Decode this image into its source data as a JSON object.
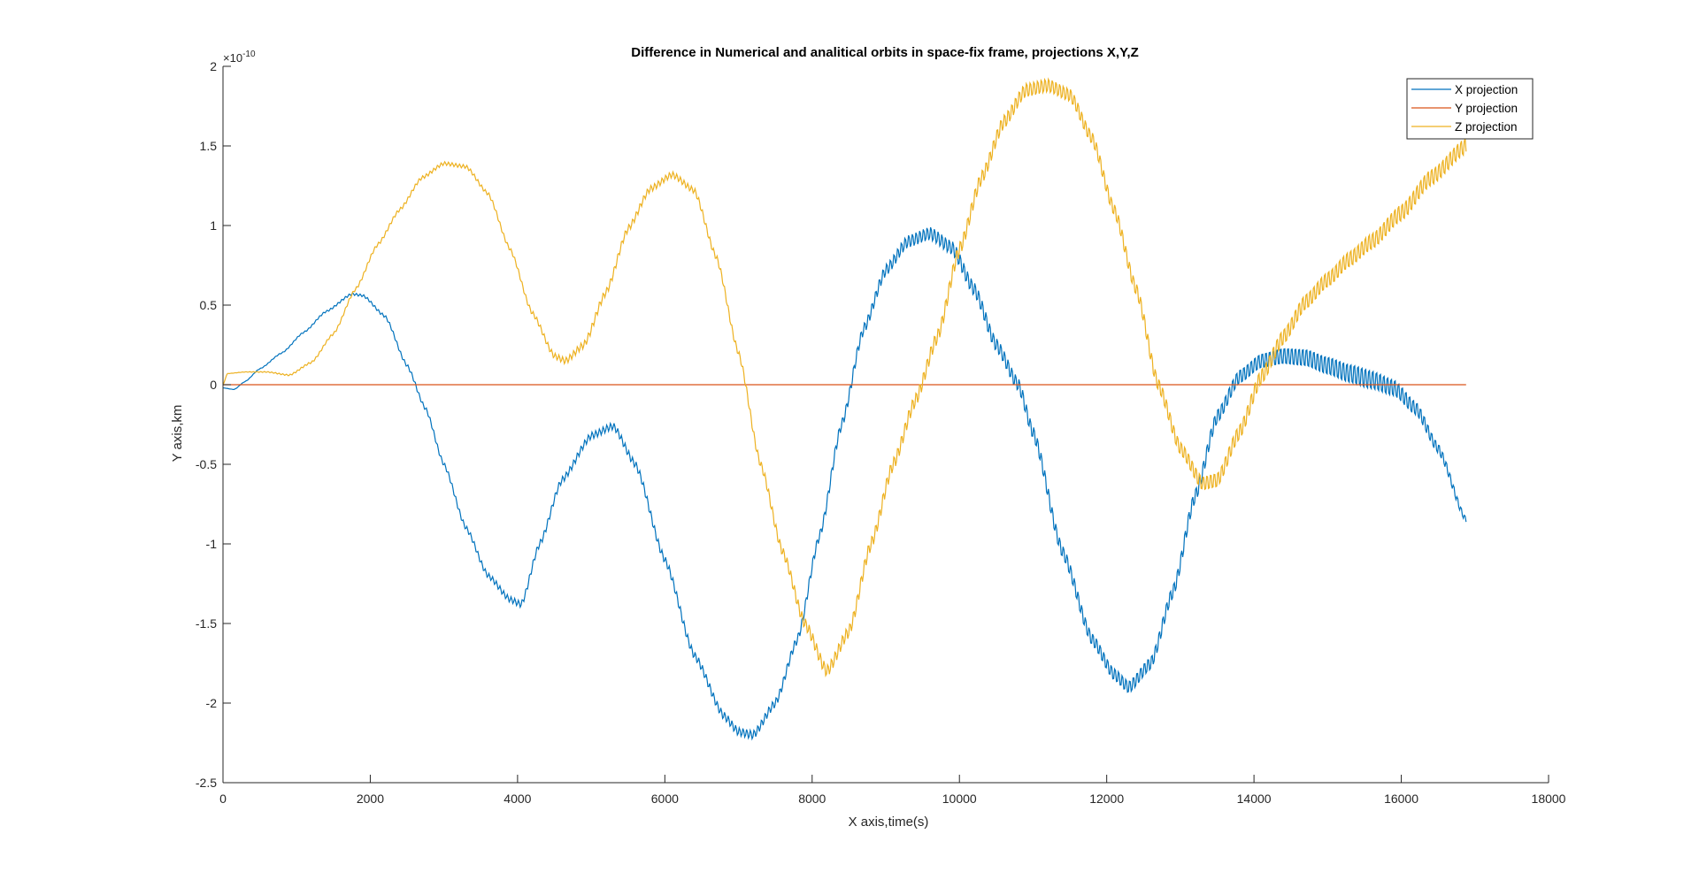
{
  "chart_data": {
    "type": "line",
    "title": "Difference in Numerical and analitical orbits in space-fix frame, projections X,Y,Z",
    "xlabel": "X axis,time(s)",
    "ylabel": "Y axis,km",
    "y_exponent_label": "×10",
    "y_exponent_power": "-10",
    "xlim": [
      0,
      18000
    ],
    "ylim": [
      -2.5,
      2
    ],
    "x_ticks": [
      0,
      2000,
      4000,
      6000,
      8000,
      10000,
      12000,
      14000,
      16000,
      18000
    ],
    "x_tick_labels": [
      "0",
      "2000",
      "4000",
      "6000",
      "8000",
      "10000",
      "12000",
      "14000",
      "16000",
      "18000"
    ],
    "y_ticks": [
      -2.5,
      -2,
      -1.5,
      -1,
      -0.5,
      0,
      0.5,
      1,
      1.5,
      2
    ],
    "y_tick_labels": [
      "-2.5",
      "-2",
      "-1.5",
      "-1",
      "-0.5",
      "0",
      "0.5",
      "1",
      "1.5",
      "2"
    ],
    "grid": false,
    "legend_position": "top-right",
    "series": [
      {
        "name": "X projection",
        "color": "#0072BD",
        "points": [
          [
            0,
            -0.02
          ],
          [
            150,
            -0.03
          ],
          [
            300,
            0.02
          ],
          [
            500,
            0.1
          ],
          [
            800,
            0.2
          ],
          [
            1100,
            0.33
          ],
          [
            1400,
            0.46
          ],
          [
            1750,
            0.57
          ],
          [
            1900,
            0.56
          ],
          [
            2200,
            0.43
          ],
          [
            2500,
            0.12
          ],
          [
            2750,
            -0.15
          ],
          [
            3000,
            -0.5
          ],
          [
            3300,
            -0.9
          ],
          [
            3600,
            -1.2
          ],
          [
            3900,
            -1.35
          ],
          [
            4050,
            -1.38
          ],
          [
            4300,
            -1.0
          ],
          [
            4600,
            -0.6
          ],
          [
            5000,
            -0.32
          ],
          [
            5300,
            -0.26
          ],
          [
            5600,
            -0.5
          ],
          [
            6000,
            -1.1
          ],
          [
            6400,
            -1.7
          ],
          [
            6800,
            -2.08
          ],
          [
            7000,
            -2.18
          ],
          [
            7200,
            -2.2
          ],
          [
            7500,
            -2.0
          ],
          [
            7800,
            -1.6
          ],
          [
            8100,
            -0.95
          ],
          [
            8400,
            -0.25
          ],
          [
            8700,
            0.35
          ],
          [
            9000,
            0.72
          ],
          [
            9300,
            0.9
          ],
          [
            9600,
            0.95
          ],
          [
            9900,
            0.86
          ],
          [
            10200,
            0.6
          ],
          [
            10500,
            0.25
          ],
          [
            10800,
            0.0
          ],
          [
            11000,
            -0.3
          ],
          [
            11400,
            -1.05
          ],
          [
            11800,
            -1.6
          ],
          [
            12100,
            -1.82
          ],
          [
            12300,
            -1.9
          ],
          [
            12600,
            -1.75
          ],
          [
            12900,
            -1.3
          ],
          [
            13200,
            -0.7
          ],
          [
            13500,
            -0.2
          ],
          [
            13800,
            0.05
          ],
          [
            14100,
            0.15
          ],
          [
            14400,
            0.18
          ],
          [
            14700,
            0.17
          ],
          [
            15000,
            0.12
          ],
          [
            15300,
            0.07
          ],
          [
            15600,
            0.03
          ],
          [
            15900,
            -0.02
          ],
          [
            16200,
            -0.15
          ],
          [
            16500,
            -0.4
          ],
          [
            16880,
            -0.85
          ]
        ],
        "oscillation": [
          [
            0,
            0
          ],
          [
            2000,
            0.008
          ],
          [
            4000,
            0.02
          ],
          [
            6000,
            0.025
          ],
          [
            8000,
            0.03
          ],
          [
            9000,
            0.04
          ],
          [
            10000,
            0.05
          ],
          [
            12000,
            0.045
          ],
          [
            13000,
            0.05
          ],
          [
            14000,
            0.055
          ],
          [
            14500,
            0.065
          ],
          [
            15500,
            0.075
          ],
          [
            16000,
            0.06
          ],
          [
            16880,
            0.02
          ]
        ]
      },
      {
        "name": "Y projection",
        "color": "#D95319",
        "points": [
          [
            0,
            0
          ],
          [
            16880,
            0
          ]
        ],
        "oscillation": [
          [
            0,
            0
          ],
          [
            16880,
            0
          ]
        ]
      },
      {
        "name": "Z projection",
        "color": "#EDB120",
        "points": [
          [
            0,
            0
          ],
          [
            60,
            0.07
          ],
          [
            300,
            0.08
          ],
          [
            600,
            0.08
          ],
          [
            900,
            0.06
          ],
          [
            1200,
            0.14
          ],
          [
            1500,
            0.32
          ],
          [
            1800,
            0.6
          ],
          [
            2100,
            0.88
          ],
          [
            2400,
            1.1
          ],
          [
            2700,
            1.3
          ],
          [
            3000,
            1.39
          ],
          [
            3300,
            1.37
          ],
          [
            3600,
            1.2
          ],
          [
            3900,
            0.85
          ],
          [
            4200,
            0.45
          ],
          [
            4500,
            0.18
          ],
          [
            4650,
            0.15
          ],
          [
            4900,
            0.25
          ],
          [
            5200,
            0.58
          ],
          [
            5500,
            0.98
          ],
          [
            5800,
            1.23
          ],
          [
            6100,
            1.32
          ],
          [
            6400,
            1.22
          ],
          [
            6700,
            0.8
          ],
          [
            7000,
            0.2
          ],
          [
            7300,
            -0.5
          ],
          [
            7600,
            -1.05
          ],
          [
            7900,
            -1.5
          ],
          [
            8200,
            -1.8
          ],
          [
            8500,
            -1.55
          ],
          [
            8800,
            -1.0
          ],
          [
            9100,
            -0.5
          ],
          [
            9400,
            -0.1
          ],
          [
            9700,
            0.3
          ],
          [
            10000,
            0.85
          ],
          [
            10300,
            1.3
          ],
          [
            10600,
            1.65
          ],
          [
            10900,
            1.85
          ],
          [
            11200,
            1.88
          ],
          [
            11500,
            1.82
          ],
          [
            11800,
            1.55
          ],
          [
            12100,
            1.1
          ],
          [
            12400,
            0.6
          ],
          [
            12700,
            0.0
          ],
          [
            13000,
            -0.4
          ],
          [
            13300,
            -0.62
          ],
          [
            13500,
            -0.6
          ],
          [
            13800,
            -0.3
          ],
          [
            14100,
            0.05
          ],
          [
            14400,
            0.3
          ],
          [
            14700,
            0.52
          ],
          [
            15000,
            0.66
          ],
          [
            15300,
            0.79
          ],
          [
            15600,
            0.9
          ],
          [
            16000,
            1.08
          ],
          [
            16400,
            1.3
          ],
          [
            16880,
            1.5
          ]
        ],
        "oscillation": [
          [
            0,
            0
          ],
          [
            2000,
            0.01
          ],
          [
            4000,
            0.012
          ],
          [
            5000,
            0.025
          ],
          [
            6000,
            0.02
          ],
          [
            7000,
            0.02
          ],
          [
            8000,
            0.04
          ],
          [
            9000,
            0.045
          ],
          [
            10000,
            0.05
          ],
          [
            11000,
            0.05
          ],
          [
            12000,
            0.045
          ],
          [
            13000,
            0.05
          ],
          [
            14000,
            0.06
          ],
          [
            15000,
            0.06
          ],
          [
            16000,
            0.065
          ],
          [
            16880,
            0.06
          ]
        ]
      }
    ]
  }
}
